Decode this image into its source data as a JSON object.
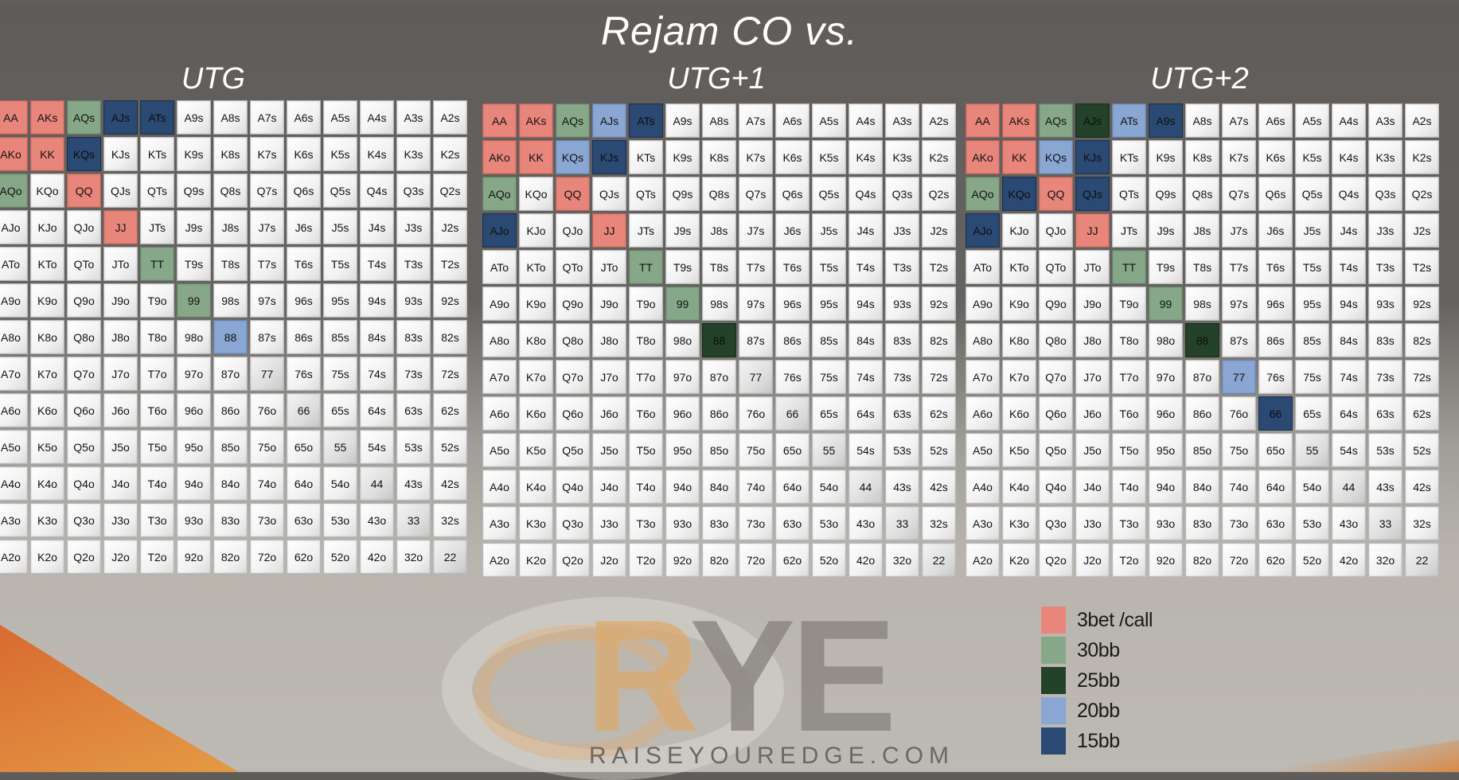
{
  "title": "Rejam CO vs.",
  "charts": [
    {
      "title": "UTG",
      "colored": {
        "AA": "3bet",
        "AKs": "3bet",
        "AQs": "30bb",
        "AJs": "15bb",
        "ATs": "15bb",
        "AKo": "3bet",
        "KK": "3bet",
        "KQs": "15bb",
        "AQo": "30bb",
        "QQ": "3bet",
        "JJ": "3bet",
        "TT": "30bb",
        "99": "30bb",
        "88": "20bb"
      }
    },
    {
      "title": "UTG+1",
      "colored": {
        "AA": "3bet",
        "AKs": "3bet",
        "AQs": "30bb",
        "AJs": "20bb",
        "ATs": "15bb",
        "AKo": "3bet",
        "KK": "3bet",
        "KQs": "20bb",
        "KJs": "15bb",
        "AQo": "30bb",
        "QQ": "3bet",
        "AJo": "15bb",
        "JJ": "3bet",
        "TT": "30bb",
        "99": "30bb",
        "88": "25bb"
      }
    },
    {
      "title": "UTG+2",
      "colored": {
        "AA": "3bet",
        "AKs": "3bet",
        "AQs": "30bb",
        "AJs": "25bb",
        "ATs": "20bb",
        "A9s": "15bb",
        "AKo": "3bet",
        "KK": "3bet",
        "KQs": "20bb",
        "KJs": "15bb",
        "AQo": "30bb",
        "KQo": "15bb",
        "QQ": "3bet",
        "QJs": "15bb",
        "AJo": "15bb",
        "JJ": "3bet",
        "TT": "30bb",
        "99": "30bb",
        "88": "25bb",
        "77": "20bb",
        "66": "15bb"
      }
    }
  ],
  "ranks": [
    "A",
    "K",
    "Q",
    "J",
    "T",
    "9",
    "8",
    "7",
    "6",
    "5",
    "4",
    "3",
    "2"
  ],
  "legend": [
    {
      "label": "3bet /call",
      "key": "3bet",
      "color": "#e8867b"
    },
    {
      "label": "30bb",
      "key": "30bb",
      "color": "#86a889"
    },
    {
      "label": "25bb",
      "key": "25bb",
      "color": "#244229"
    },
    {
      "label": "20bb",
      "key": "20bb",
      "color": "#8aa6d2"
    },
    {
      "label": "15bb",
      "key": "15bb",
      "color": "#2b4a73"
    }
  ],
  "logo": {
    "letters_1": "R",
    "letters_2": "YE",
    "subtitle": "RAISEYOUREDGE.COM"
  }
}
